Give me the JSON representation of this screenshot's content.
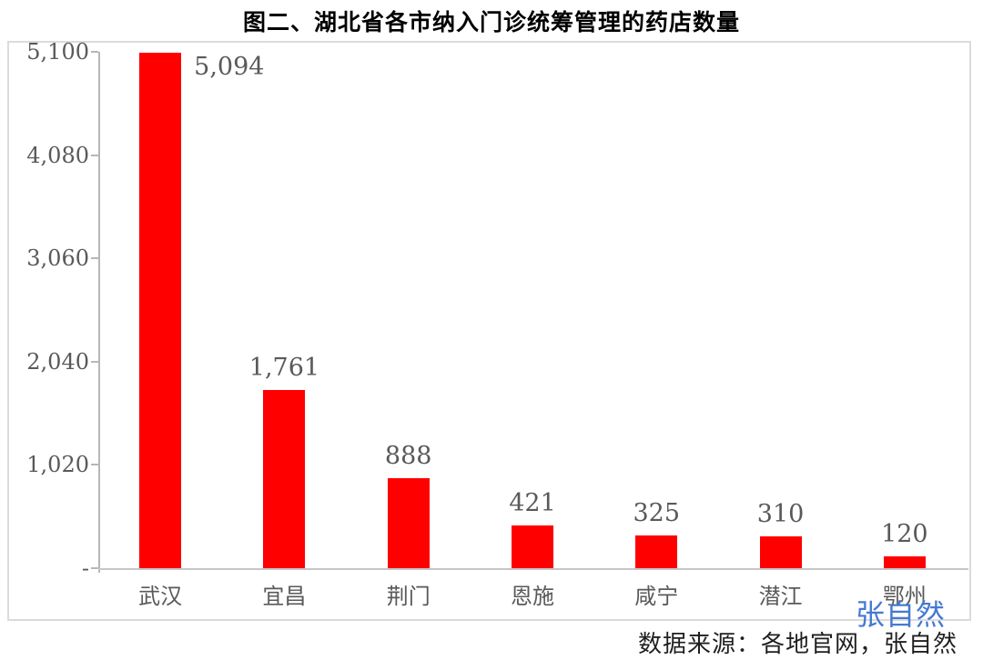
{
  "title": "图二、湖北省各市纳入门诊统筹管理的药店数量",
  "chart_data": {
    "type": "bar",
    "title": "图二、湖北省各市纳入门诊统筹管理的药店数量",
    "categories": [
      "武汉",
      "宜昌",
      "荆门",
      "恩施",
      "咸宁",
      "潜江",
      "鄂州"
    ],
    "values": [
      5094,
      1761,
      888,
      421,
      325,
      310,
      120
    ],
    "value_labels": [
      "5,094",
      "1,761",
      "888",
      "421",
      "325",
      "310",
      "120"
    ],
    "xlabel": "",
    "ylabel": "",
    "ylim": [
      0,
      5100
    ],
    "yticks": [
      0,
      1020,
      2040,
      3060,
      4080,
      5100
    ],
    "ytick_labels": [
      "-",
      "1,020",
      "2,040",
      "3,060",
      "4,080",
      "5,100"
    ],
    "bar_color": "#ff0000",
    "label_color": "#595959",
    "grid": false,
    "legend": false,
    "first_label_placement": "right-of-bar-top"
  },
  "watermark": {
    "text": "张自然",
    "color": "#4579d2"
  },
  "source": {
    "text": "数据来源：各地官网，张自然"
  }
}
